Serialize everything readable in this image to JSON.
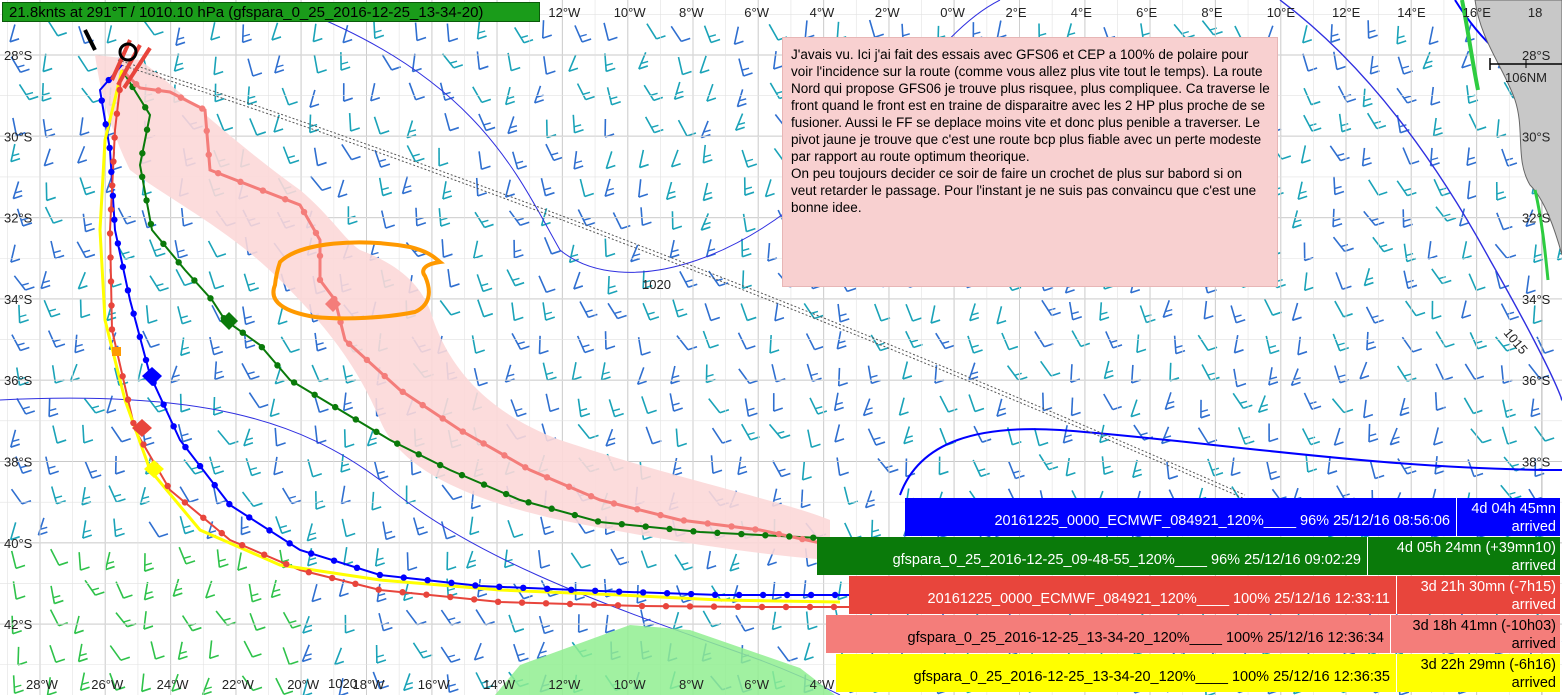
{
  "status_bar": "21.8knts at 291°T / 1010.10 hPa (gfspara_0_25_2016-12-25_13-34-20)",
  "scale_label": "106NM",
  "isobar_labels": [
    "1020",
    "1015",
    "1020"
  ],
  "longitude_labels": [
    "28°W",
    "26°W",
    "24°W",
    "22°W",
    "20°W",
    "18°W",
    "16°W",
    "14°W",
    "12°W",
    "10°W",
    "8°W",
    "6°W",
    "4°W",
    "2°W",
    "0°W",
    "2°E",
    "4°E",
    "6°E",
    "8°E",
    "10°E",
    "12°E",
    "14°E",
    "16°E",
    "18"
  ],
  "latitude_labels": [
    "28°S",
    "30°S",
    "32°S",
    "34°S",
    "36°S",
    "38°S",
    "40°S",
    "42°S"
  ],
  "note": "J'avais vu. Ici j'ai fait des essais avec GFS06 et CEP a 100% de polaire pour voir l'incidence sur la route (comme vous allez plus vite tout le temps). La route Nord qui propose GFS06 je trouve plus risquee, plus compliquee. Ca traverse le front quand le front est en traine de disparaitre avec les 2 HP plus proche de se fusioner. Aussi le FF se deplace moins vite et donc plus penible a traverser. Le pivot jaune je trouve que c'est une route bcp plus fiable avec un perte modeste par rapport au route optimum theorique.\nOn peu toujours decider ce soir de faire un crochet de plus sur babord si on veut retarder le passage. Pour l'instant je ne suis pas convaincu que c'est une bonne idee.",
  "colors": {
    "blue_route": "#0000ff",
    "green_route": "#0a7a0a",
    "red_route": "#e8453c",
    "pink_route": "#f47d7a",
    "yellow_route": "#ffff00",
    "orange_marker": "#ff9900",
    "pink_zone": "#fcd8d8",
    "wind_barbs": "#1aa3b8",
    "land": "#c8c8c8",
    "high_wind_zone": "#90ee90"
  },
  "routes": [
    {
      "id": "blue",
      "name": "20161225_0000_ECMWF_084921_120%____ 96% 25/12/16 08:56:06",
      "eta": "4d 04h 45mn",
      "state": "arrived"
    },
    {
      "id": "green",
      "name": "gfspara_0_25_2016-12-25_09-48-55_120%____ 96% 25/12/16 09:02:29",
      "eta": "4d 05h 24mn (+39mn10)",
      "state": "arrived"
    },
    {
      "id": "red",
      "name": "20161225_0000_ECMWF_084921_120%____ 100% 25/12/16 12:33:11",
      "eta": "3d 21h 30mn (-7h15)",
      "state": "arrived"
    },
    {
      "id": "pink",
      "name": "gfspara_0_25_2016-12-25_13-34-20_120%____ 100% 25/12/16 12:36:34",
      "eta": "3d 18h 41mn (-10h03)",
      "state": "arrived"
    },
    {
      "id": "yellow",
      "name": "gfspara_0_25_2016-12-25_13-34-20_120%____ 100% 25/12/16 12:36:35",
      "eta": "3d 22h 29mn (-6h16)",
      "state": "arrived"
    }
  ]
}
